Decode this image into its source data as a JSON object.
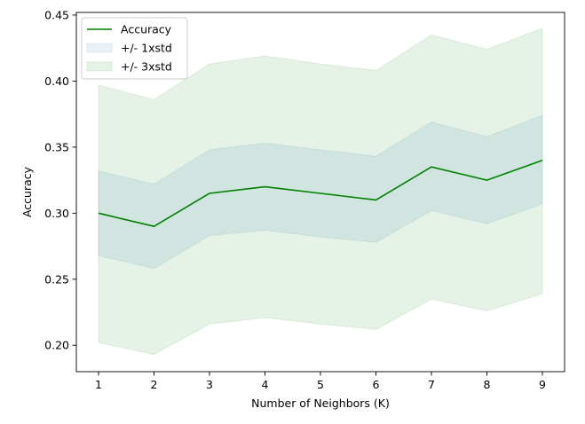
{
  "chart_data": {
    "type": "line",
    "title": "",
    "xlabel": "Number of Neighbors (K)",
    "ylabel": "Accuracy",
    "x": [
      1,
      2,
      3,
      4,
      5,
      6,
      7,
      8,
      9
    ],
    "xlim": [
      0.6,
      9.4
    ],
    "ylim": [
      0.18,
      0.452
    ],
    "xticks": [
      1,
      2,
      3,
      4,
      5,
      6,
      7,
      8,
      9
    ],
    "yticks": [
      0.2,
      0.25,
      0.3,
      0.35,
      0.4,
      0.45
    ],
    "grid": false,
    "legend_position": "top-left",
    "series": [
      {
        "name": "Accuracy",
        "kind": "line",
        "color": "#008000",
        "y": [
          0.3,
          0.29,
          0.315,
          0.32,
          0.315,
          0.31,
          0.335,
          0.325,
          0.34
        ]
      },
      {
        "name": "+/- 1xstd",
        "kind": "band",
        "color": "#1f77b4",
        "opacity": 0.1,
        "lower": [
          0.268,
          0.258,
          0.283,
          0.287,
          0.282,
          0.278,
          0.302,
          0.292,
          0.307
        ],
        "upper": [
          0.332,
          0.322,
          0.348,
          0.353,
          0.348,
          0.343,
          0.369,
          0.358,
          0.374
        ]
      },
      {
        "name": "+/- 3xstd",
        "kind": "band",
        "color": "#008000",
        "opacity": 0.1,
        "lower": [
          0.202,
          0.193,
          0.216,
          0.221,
          0.216,
          0.212,
          0.235,
          0.226,
          0.239
        ],
        "upper": [
          0.397,
          0.386,
          0.413,
          0.419,
          0.413,
          0.408,
          0.435,
          0.424,
          0.44
        ]
      }
    ]
  }
}
